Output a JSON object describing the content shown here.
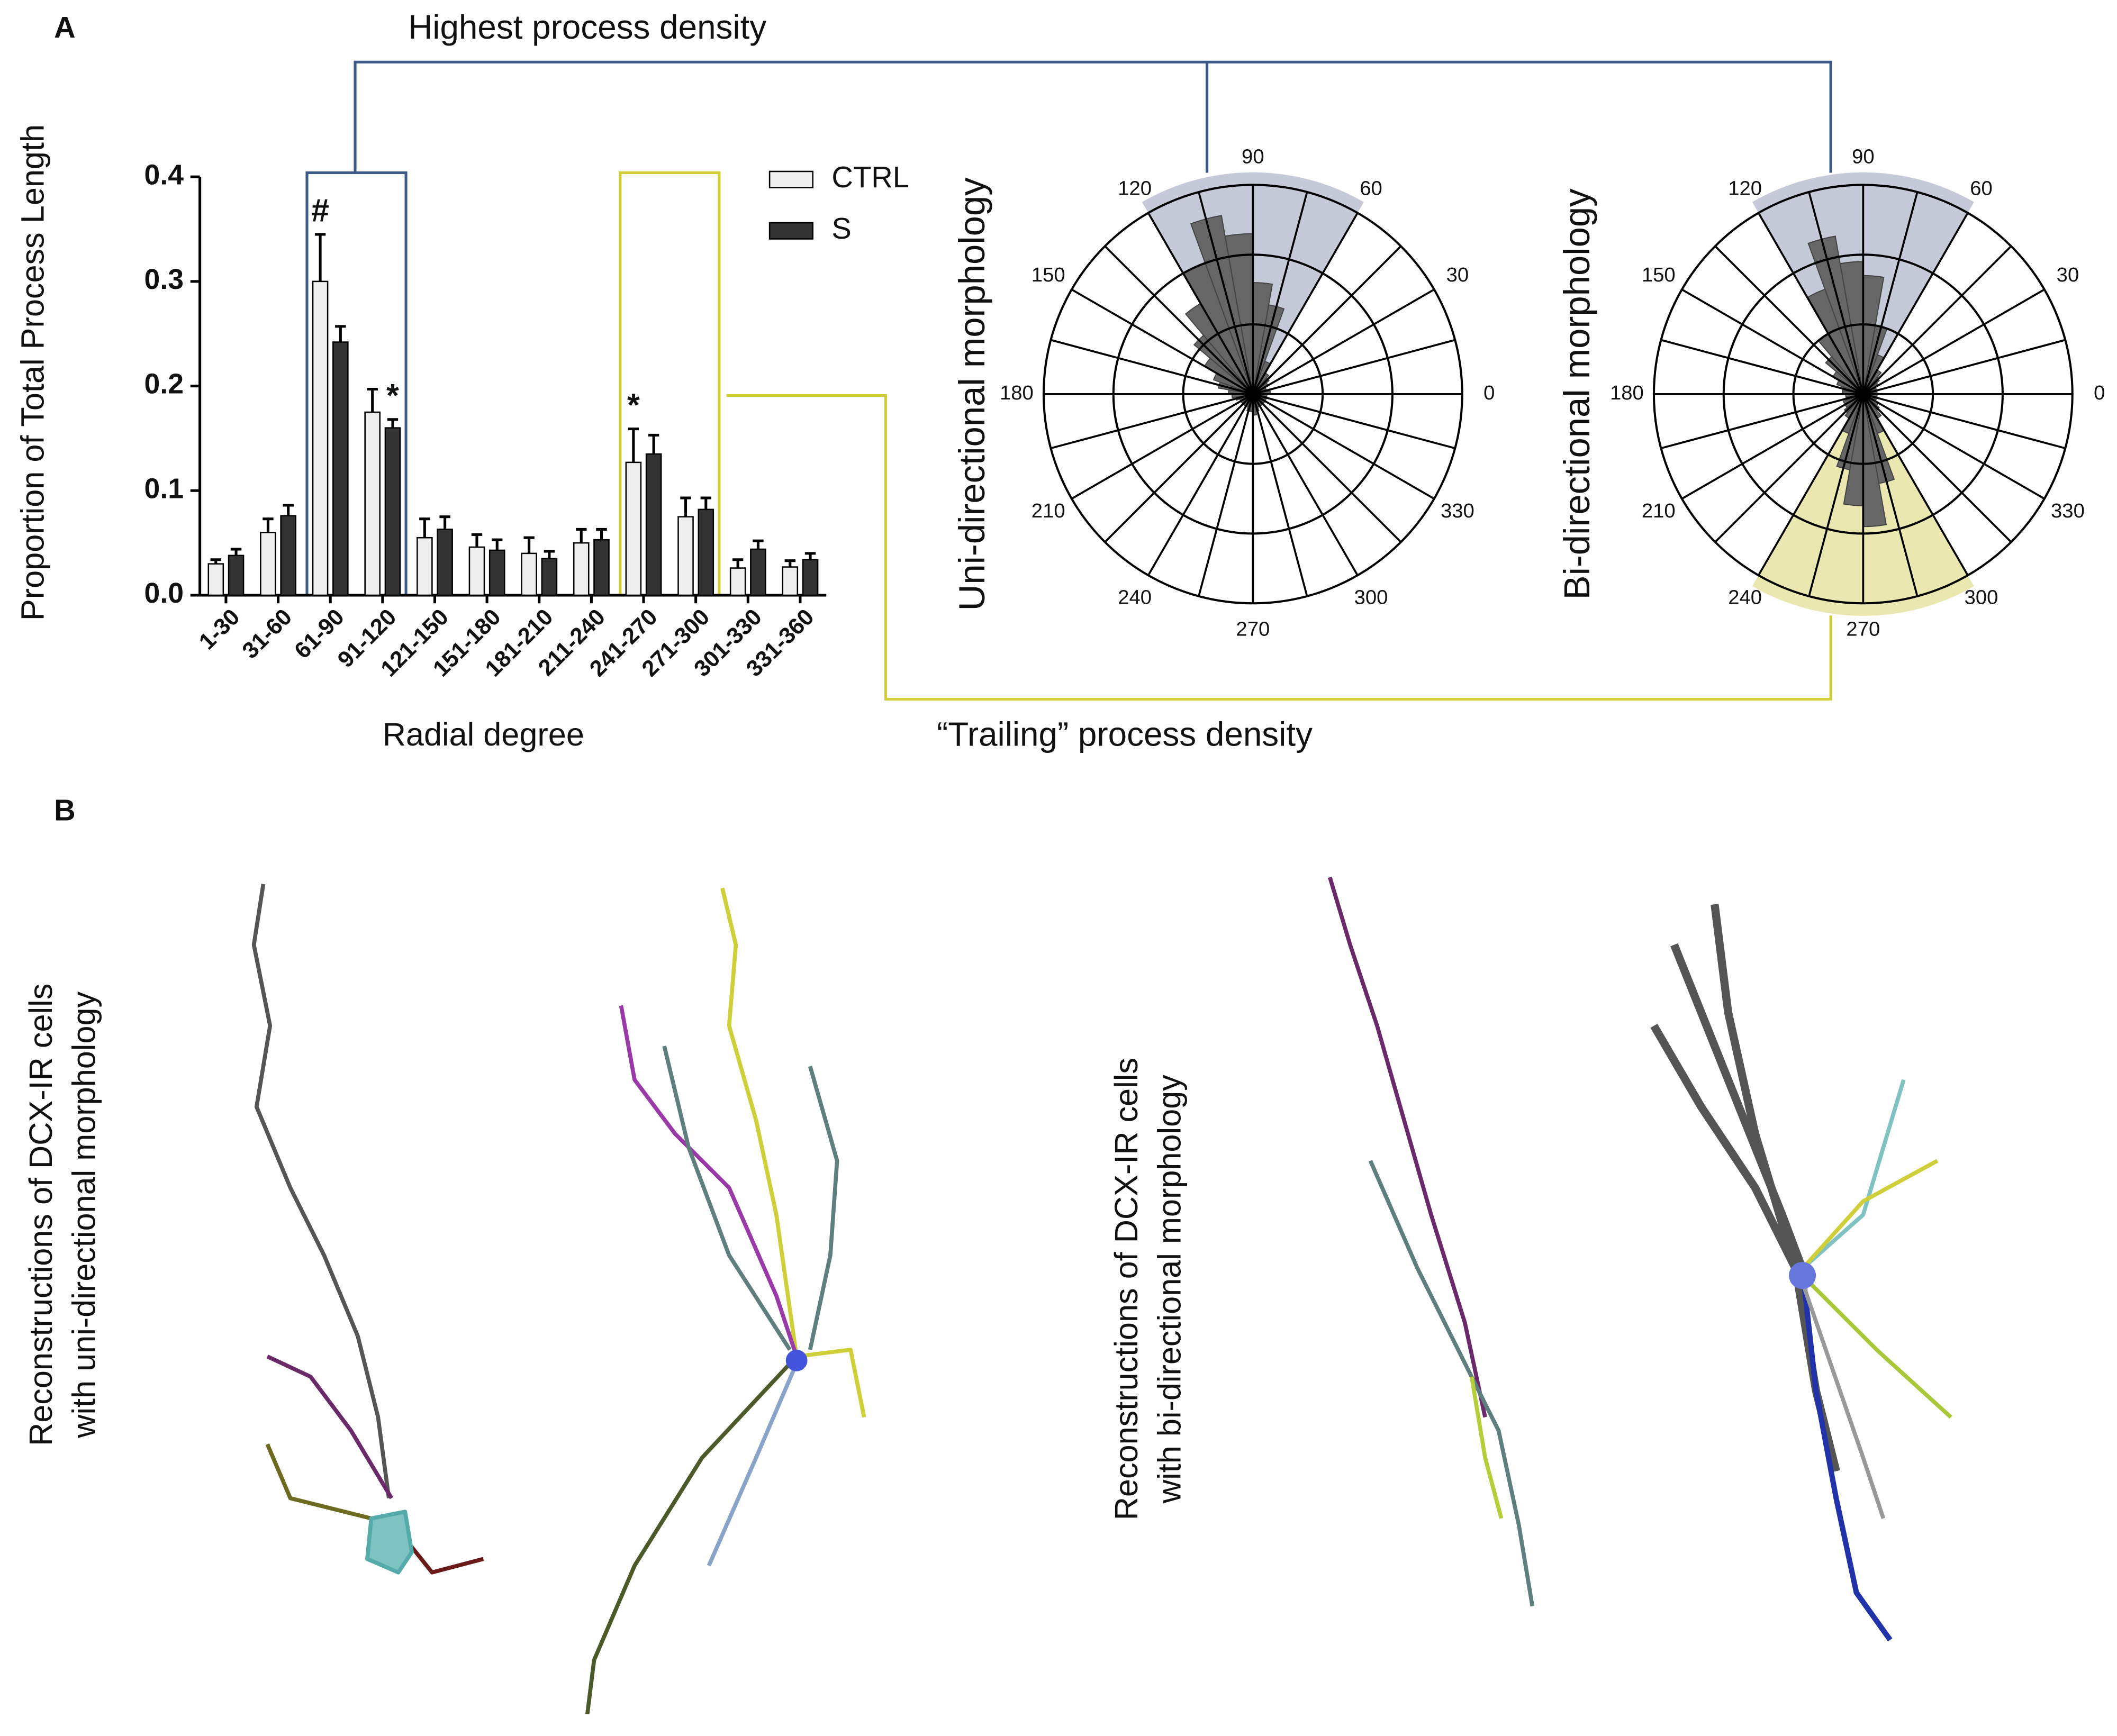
{
  "panels": {
    "a": "A",
    "b": "B"
  },
  "chart_data": [
    {
      "type": "bar",
      "y_label": "Proportion of Total Process Length",
      "x_label": "Radial degree",
      "categories": [
        "1-30",
        "31-60",
        "61-90",
        "91-120",
        "121-150",
        "151-180",
        "181-210",
        "211-240",
        "241-270",
        "271-300",
        "301-330",
        "331-360"
      ],
      "series": [
        {
          "name": "CTRL",
          "color": "#eeeeee",
          "values": [
            0.03,
            0.06,
            0.3,
            0.175,
            0.055,
            0.046,
            0.04,
            0.05,
            0.127,
            0.075,
            0.026,
            0.027
          ],
          "errors": [
            0.004,
            0.013,
            0.045,
            0.022,
            0.018,
            0.012,
            0.015,
            0.013,
            0.032,
            0.018,
            0.008,
            0.006
          ]
        },
        {
          "name": "S",
          "color": "#333333",
          "values": [
            0.038,
            0.076,
            0.242,
            0.16,
            0.063,
            0.043,
            0.035,
            0.053,
            0.135,
            0.082,
            0.044,
            0.034
          ],
          "errors": [
            0.006,
            0.01,
            0.015,
            0.008,
            0.012,
            0.01,
            0.007,
            0.01,
            0.018,
            0.011,
            0.008,
            0.006
          ]
        }
      ],
      "ylim": [
        0,
        0.4
      ],
      "yticks": [
        {
          "value": 0,
          "label": "0.0"
        },
        0.1,
        0.2,
        0.3,
        0.4
      ],
      "annotations": [
        {
          "text": "#",
          "category": "61-90",
          "series": "CTRL"
        },
        {
          "text": "*",
          "category": "91-120",
          "series": "S"
        },
        {
          "text": "*",
          "category": "241-270",
          "series": "CTRL"
        }
      ],
      "highlight_boxes": [
        {
          "from": "61-90",
          "to": "91-120",
          "color": "#3d5a8a",
          "label": "Highest process density"
        },
        {
          "from": "241-270",
          "to": "271-300",
          "color": "#d4cd3a",
          "label": "“Trailing” process density"
        }
      ]
    },
    {
      "type": "rose",
      "y_label": "Uni-directional morphology",
      "thetaticks": [
        0,
        30,
        60,
        90,
        120,
        150,
        180,
        210,
        240,
        270,
        300,
        330
      ],
      "rlim": [
        0,
        3
      ],
      "rticks": [
        1,
        2,
        3
      ],
      "theta_bins": [
        0,
        10,
        20,
        30,
        40,
        50,
        60,
        70,
        80,
        90,
        100,
        110,
        120,
        130,
        140,
        150,
        160,
        170,
        180,
        190,
        200,
        210,
        220,
        230,
        240,
        250,
        260,
        270,
        280,
        290,
        300,
        310,
        320,
        330,
        340,
        350,
        360
      ],
      "values": [
        0.25,
        0.2,
        0.2,
        0.25,
        0.3,
        0.35,
        0.5,
        1.3,
        1.6,
        2.3,
        2.6,
        2.0,
        1.5,
        1.1,
        0.8,
        0.6,
        0.5,
        0.35,
        0.3,
        0.25,
        0.2,
        0.2,
        0.2,
        0.2,
        0.2,
        0.25,
        0.25,
        0.3,
        0.25,
        0.2,
        0.2,
        0.2,
        0.2,
        0.2,
        0.2,
        0.2
      ],
      "color": "#666666",
      "sectors": [
        {
          "from": 60,
          "to": 120,
          "color": "#c4cad8"
        }
      ]
    },
    {
      "type": "rose",
      "y_label": "Bi-directional morphology",
      "thetaticks": [
        0,
        30,
        60,
        90,
        120,
        150,
        180,
        210,
        240,
        270,
        300,
        330
      ],
      "rlim": [
        0,
        3
      ],
      "rticks": [
        1,
        2,
        3
      ],
      "theta_bins": [
        0,
        10,
        20,
        30,
        40,
        50,
        60,
        70,
        80,
        90,
        100,
        110,
        120,
        130,
        140,
        150,
        160,
        170,
        180,
        190,
        200,
        210,
        220,
        230,
        240,
        250,
        260,
        270,
        280,
        290,
        300,
        310,
        320,
        330,
        340,
        350,
        360
      ],
      "values": [
        0.2,
        0.2,
        0.2,
        0.25,
        0.3,
        0.4,
        0.6,
        1.0,
        1.7,
        1.9,
        2.3,
        1.6,
        1.0,
        0.7,
        0.5,
        0.4,
        0.3,
        0.3,
        0.25,
        0.25,
        0.3,
        0.3,
        0.35,
        0.4,
        0.6,
        1.1,
        1.6,
        1.9,
        1.3,
        0.6,
        0.4,
        0.3,
        0.25,
        0.2,
        0.2,
        0.2
      ],
      "color": "#666666",
      "sectors": [
        {
          "from": 60,
          "to": 120,
          "color": "#c4cad8"
        },
        {
          "from": 240,
          "to": 300,
          "color": "#ebe7b0"
        }
      ]
    }
  ],
  "panel_b": {
    "uni_label": [
      "Reconstructions of DCX-IR cells",
      "with uni-directional morphology"
    ],
    "bi_label": [
      "Reconstructions of DCX-IR cells",
      "with bi-directional morphology"
    ]
  }
}
